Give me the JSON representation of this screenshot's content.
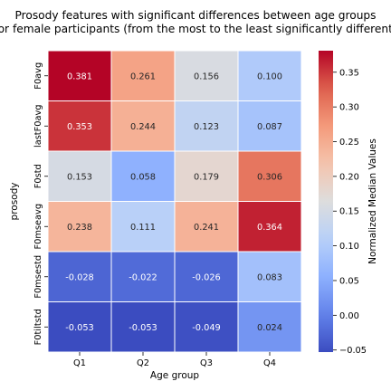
{
  "chart_data": {
    "type": "heatmap",
    "title_lines": [
      "Prosody features with significant differences between age groups",
      "for female participants (from the most to the least significantly different)"
    ],
    "xlabel": "Age group",
    "ylabel": "prosody",
    "x_categories": [
      "Q1",
      "Q2",
      "Q3",
      "Q4"
    ],
    "y_categories": [
      "F0avg",
      "lastF0avg",
      "F0std",
      "F0mseavg",
      "F0msestd",
      "F0tiltstd"
    ],
    "values": [
      [
        0.381,
        0.261,
        0.156,
        0.1
      ],
      [
        0.353,
        0.244,
        0.123,
        0.087
      ],
      [
        0.153,
        0.058,
        0.179,
        0.306
      ],
      [
        0.238,
        0.111,
        0.241,
        0.364
      ],
      [
        -0.028,
        -0.022,
        -0.026,
        0.083
      ],
      [
        -0.053,
        -0.053,
        -0.049,
        0.024
      ]
    ],
    "value_format": "3 decimals",
    "colormap": "coolwarm",
    "colorbar": {
      "label": "Normalized Median Values",
      "range": [
        -0.053,
        0.381
      ],
      "ticks": [
        -0.05,
        0.0,
        0.05,
        0.1,
        0.15,
        0.2,
        0.25,
        0.3,
        0.35
      ],
      "tick_labels": [
        "−0.05",
        "0.00",
        "0.05",
        "0.10",
        "0.15",
        "0.20",
        "0.25",
        "0.30",
        "0.35"
      ],
      "placement": "right"
    },
    "grid": false
  }
}
